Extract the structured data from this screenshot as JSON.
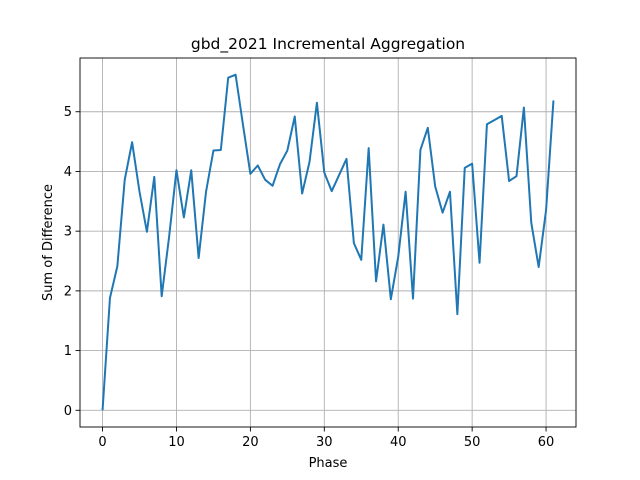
{
  "chart_data": {
    "type": "line",
    "title": "gbd_2021 Incremental Aggregation",
    "xlabel": "Phase",
    "ylabel": "Sum of Difference",
    "xlim": [
      -3.05,
      64.05
    ],
    "ylim": [
      -0.28,
      5.9
    ],
    "xticks": [
      0,
      10,
      20,
      30,
      40,
      50,
      60
    ],
    "yticks": [
      0,
      1,
      2,
      3,
      4,
      5
    ],
    "grid": true,
    "color": "#1f77b4",
    "x": [
      0,
      1,
      2,
      3,
      4,
      5,
      6,
      7,
      8,
      9,
      10,
      11,
      12,
      13,
      14,
      15,
      16,
      17,
      18,
      19,
      20,
      21,
      22,
      23,
      24,
      25,
      26,
      27,
      28,
      29,
      30,
      31,
      32,
      33,
      34,
      35,
      36,
      37,
      38,
      39,
      40,
      41,
      42,
      43,
      44,
      45,
      46,
      47,
      48,
      49,
      50,
      51,
      52,
      53,
      54,
      55,
      56,
      57,
      58,
      59,
      60,
      61
    ],
    "y": [
      0.0,
      1.88,
      2.41,
      3.86,
      4.49,
      3.66,
      2.99,
      3.91,
      1.91,
      2.9,
      4.02,
      3.23,
      4.02,
      2.55,
      3.66,
      4.35,
      4.36,
      5.57,
      5.62,
      4.78,
      3.96,
      4.1,
      3.86,
      3.76,
      4.12,
      4.35,
      4.92,
      3.63,
      4.16,
      5.15,
      3.98,
      3.67,
      3.94,
      4.21,
      2.8,
      2.52,
      4.39,
      2.16,
      3.11,
      1.86,
      2.57,
      3.66,
      1.87,
      4.36,
      4.73,
      3.75,
      3.31,
      3.66,
      1.61,
      4.06,
      4.13,
      2.47,
      4.79,
      4.86,
      4.93,
      3.84,
      3.92,
      5.07,
      3.14,
      2.4,
      3.35,
      5.19
    ]
  }
}
